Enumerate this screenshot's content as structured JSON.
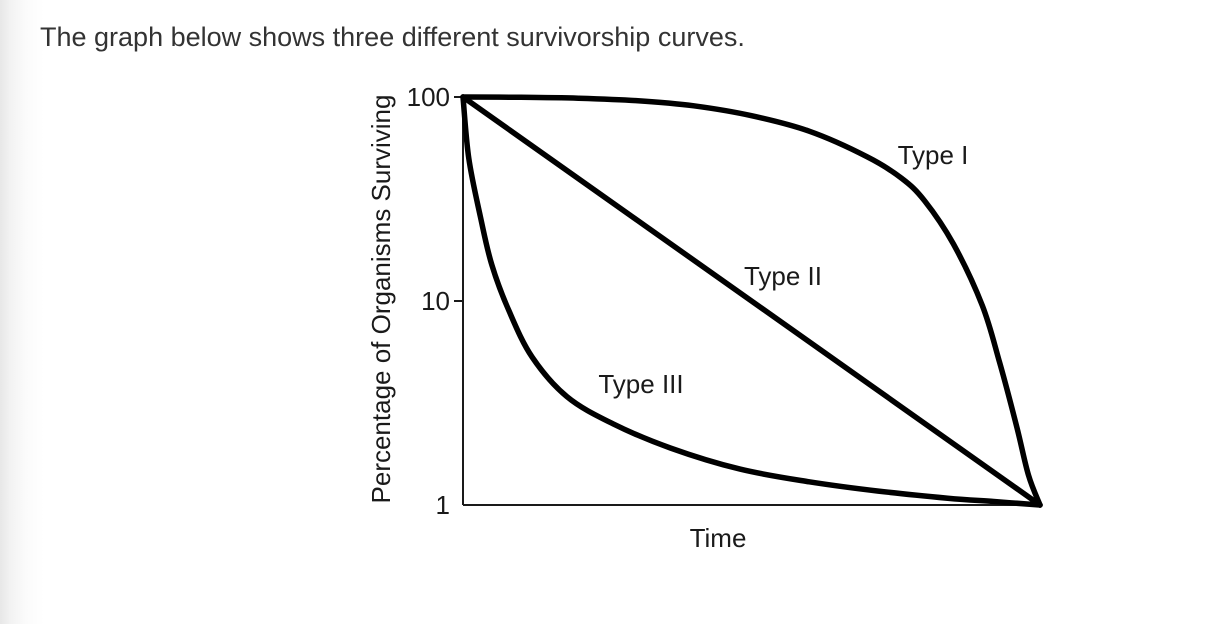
{
  "page": {
    "prompt": "The graph below shows three different survivorship curves."
  },
  "chart_data": {
    "type": "line",
    "title": "",
    "xlabel": "Time",
    "ylabel": "Percentage of Organisms Surviving",
    "yscale": "log",
    "ylim": [
      1,
      100
    ],
    "xlim": [
      0,
      1
    ],
    "yticks": [
      {
        "value": 100,
        "label": "100"
      },
      {
        "value": 10,
        "label": "10"
      },
      {
        "value": 1,
        "label": "1"
      }
    ],
    "grid": false,
    "legend": "none",
    "series": [
      {
        "name": "Type I",
        "x": [
          0,
          0.1,
          0.2,
          0.3,
          0.4,
          0.5,
          0.6,
          0.7,
          0.76,
          0.8,
          0.85,
          0.9,
          0.93,
          0.96,
          0.98,
          1.0
        ],
        "y": [
          100,
          99.7,
          98.6,
          96,
          90.5,
          81,
          68,
          51,
          40,
          31,
          19,
          9.5,
          5,
          2.4,
          1.4,
          1
        ]
      },
      {
        "name": "Type II",
        "x": [
          0,
          0.5,
          1.0
        ],
        "y": [
          100,
          10,
          1
        ]
      },
      {
        "name": "Type III",
        "x": [
          0,
          0.01,
          0.03,
          0.05,
          0.08,
          0.12,
          0.18,
          0.26,
          0.36,
          0.48,
          0.6,
          0.72,
          0.84,
          0.92,
          1.0
        ],
        "y": [
          100,
          50,
          26,
          15,
          8.9,
          5.3,
          3.4,
          2.5,
          1.9,
          1.5,
          1.3,
          1.17,
          1.08,
          1.04,
          1
        ]
      }
    ],
    "annotations": [
      {
        "text": "Type I",
        "series": "Type I"
      },
      {
        "text": "Type II",
        "series": "Type II"
      },
      {
        "text": "Type III",
        "series": "Type III"
      }
    ]
  }
}
